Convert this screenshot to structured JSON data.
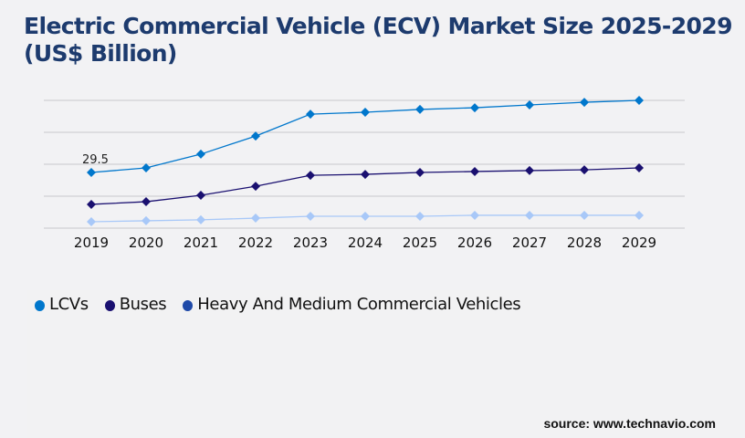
{
  "chart_data": {
    "type": "line",
    "title": "Electric Commercial Vehicle (ECV) Market Size 2025-2029 (US$ Billion)",
    "categories": [
      "2019",
      "2020",
      "2021",
      "2022",
      "2023",
      "2024",
      "2025",
      "2026",
      "2027",
      "2028",
      "2029"
    ],
    "series": [
      {
        "name": "LCVs",
        "color": "#0077cc",
        "values": [
          29.5,
          31.9,
          39.2,
          48.8,
          60.4,
          61.4,
          62.9,
          63.8,
          65.3,
          66.7,
          67.7
        ]
      },
      {
        "name": "Buses",
        "color": "#1a1070",
        "values": [
          12.6,
          14.0,
          17.4,
          22.2,
          28.0,
          28.5,
          29.5,
          30.0,
          30.5,
          30.9,
          31.9
        ]
      },
      {
        "name": "Heavy And Medium Commercial Vehicles",
        "color": "#a8c8f8",
        "legend_color": "#1f4aa8",
        "values": [
          3.4,
          3.9,
          4.4,
          5.3,
          6.3,
          6.3,
          6.3,
          6.8,
          6.8,
          6.8,
          6.8
        ]
      }
    ],
    "data_labels": [
      {
        "series": "LCVs",
        "category": "2019",
        "text": "29.5"
      }
    ],
    "ylim": [
      0,
      67.7
    ],
    "grid": true,
    "y_tick_labels_shown": false,
    "legend_position": "bottom-left"
  },
  "source": "source: www.technavio.com"
}
